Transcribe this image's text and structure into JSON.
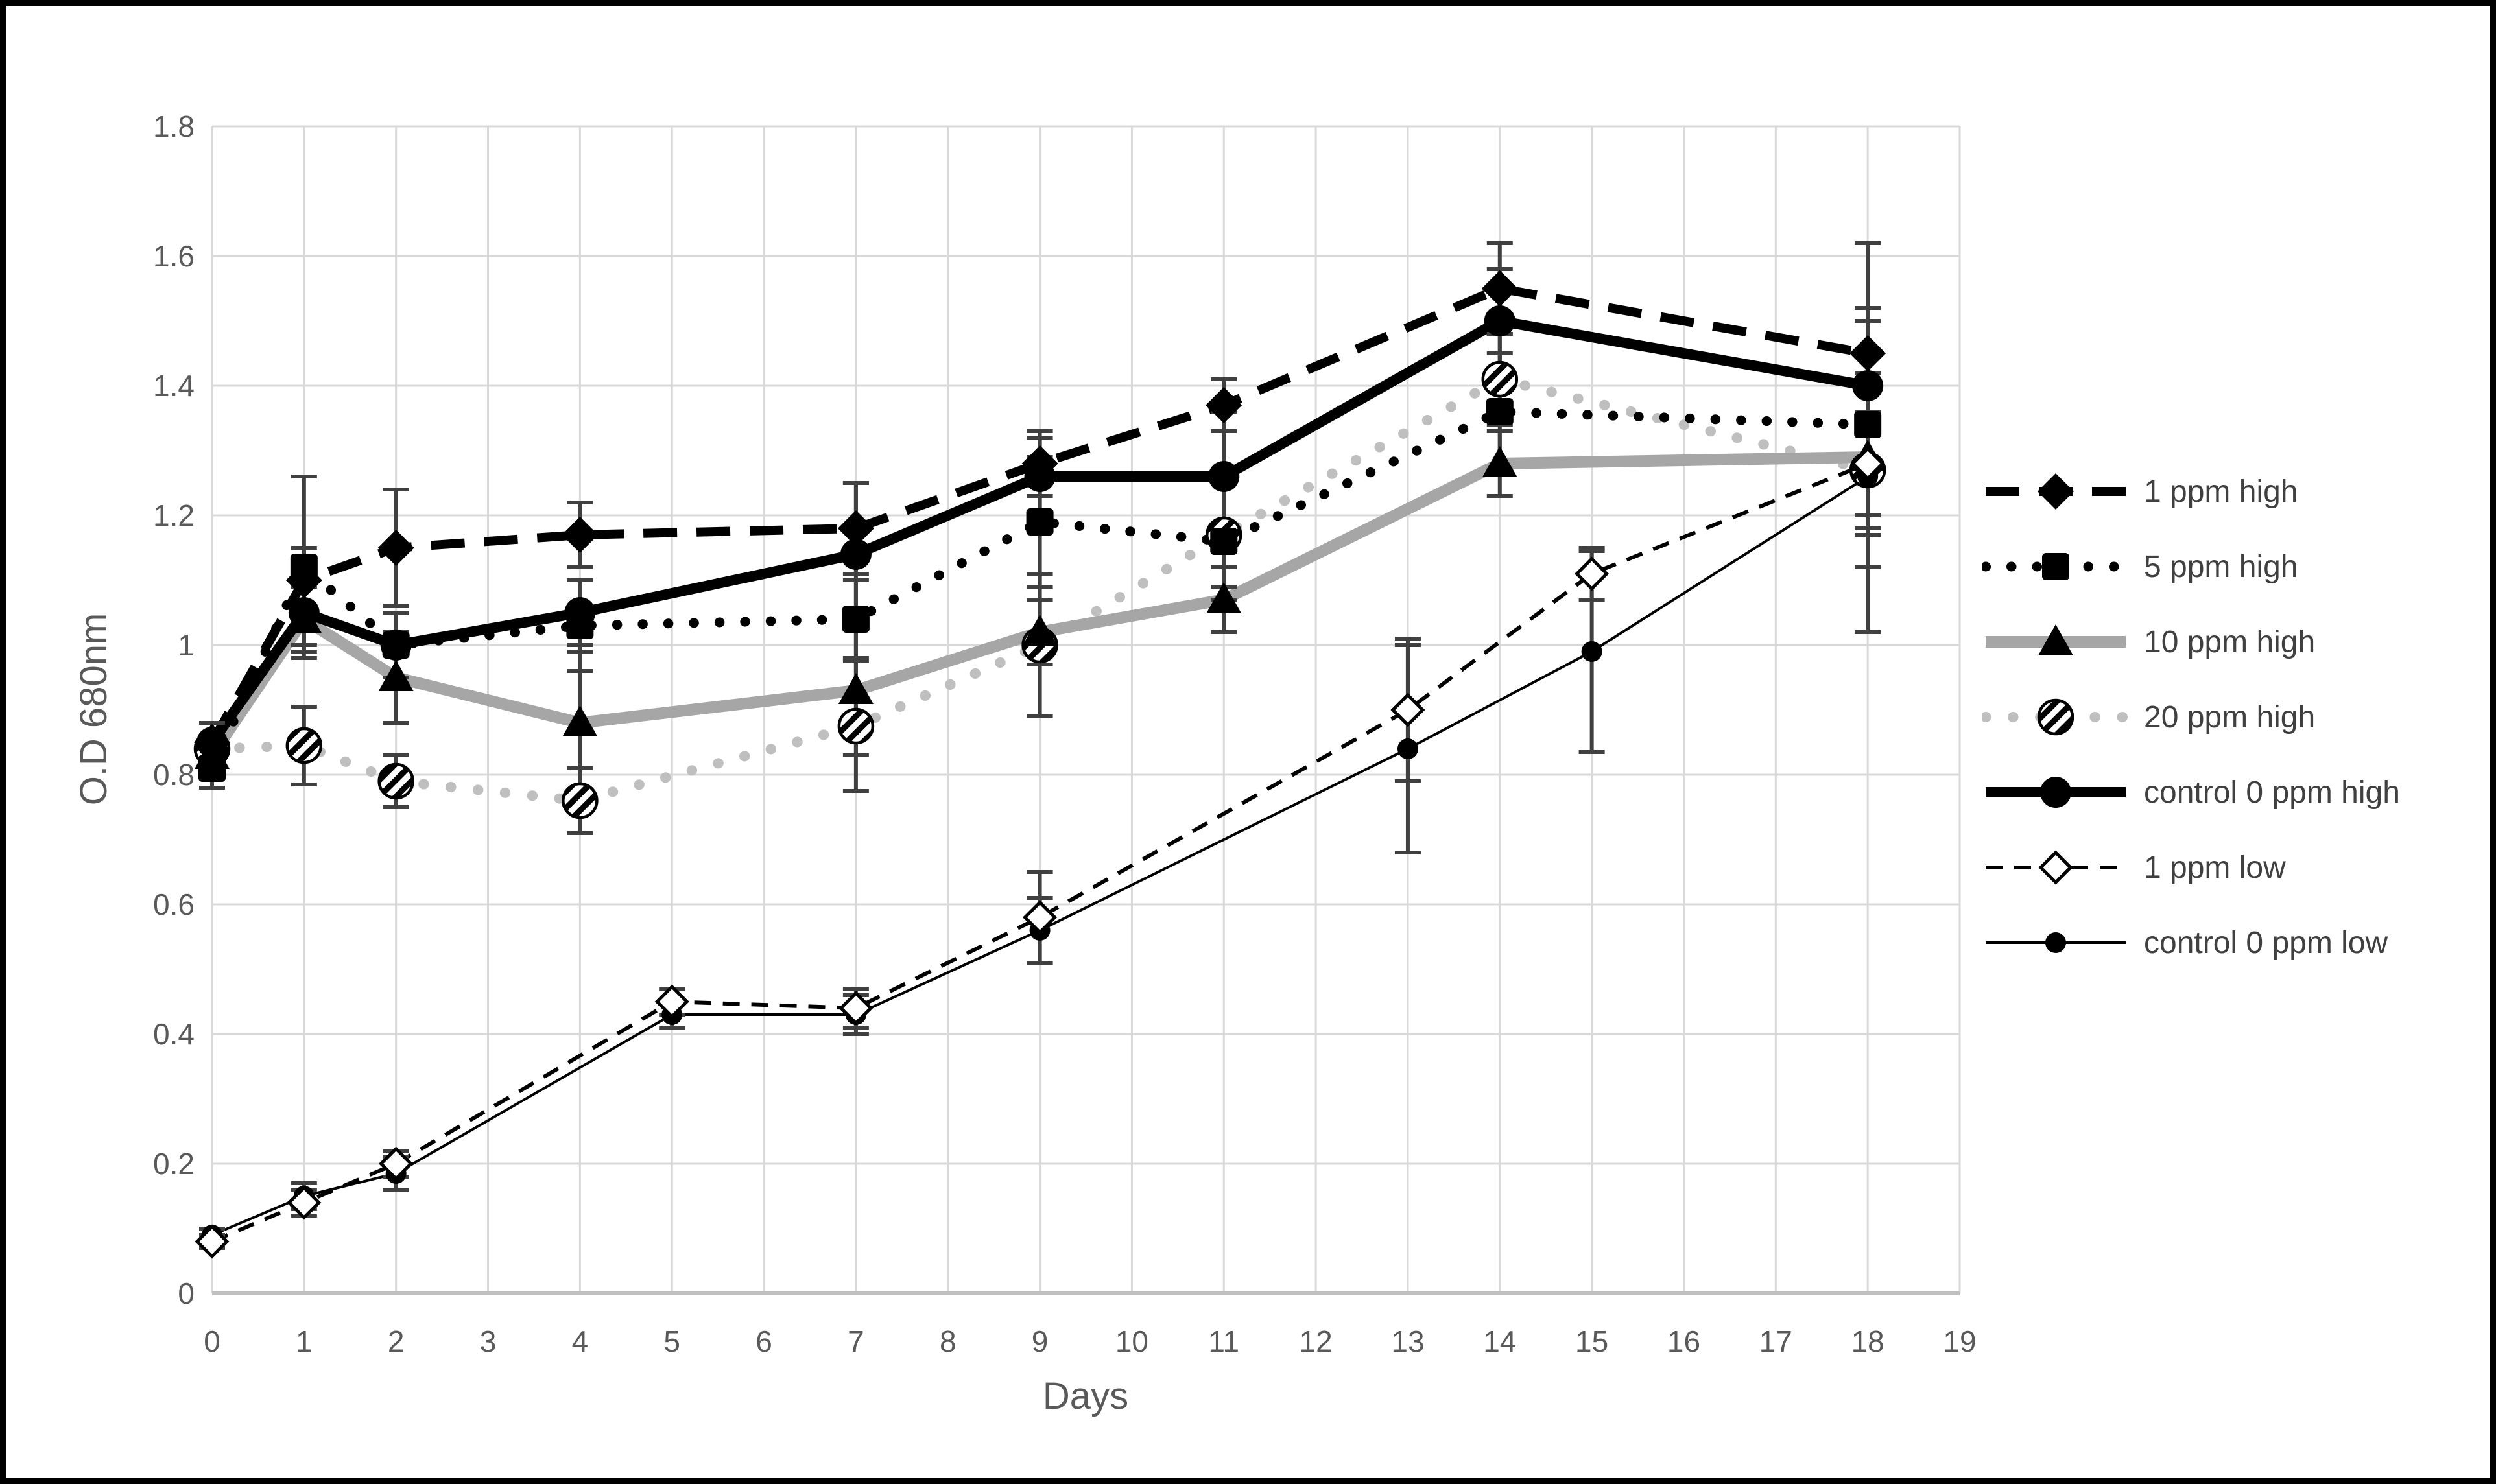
{
  "chart_data": {
    "type": "line",
    "title": "",
    "xlabel": "Days",
    "ylabel": "O.D 680nm",
    "xlim": [
      0,
      19
    ],
    "ylim": [
      0,
      1.8
    ],
    "grid": true,
    "legend_position": "right",
    "xticks": [
      0,
      1,
      2,
      3,
      4,
      5,
      6,
      7,
      8,
      9,
      10,
      11,
      12,
      13,
      14,
      15,
      16,
      17,
      18,
      19
    ],
    "yticks": [
      {
        "v": 0,
        "label": "0"
      },
      {
        "v": 0.2,
        "label": "0.2"
      },
      {
        "v": 0.4,
        "label": "0.4"
      },
      {
        "v": 0.6,
        "label": "0.6"
      },
      {
        "v": 0.8,
        "label": "0.8"
      },
      {
        "v": 1.0,
        "label": "1"
      },
      {
        "v": 1.2,
        "label": "1.2"
      },
      {
        "v": 1.4,
        "label": "1.4"
      },
      {
        "v": 1.6,
        "label": "1.6"
      },
      {
        "v": 1.8,
        "label": "1.8"
      }
    ],
    "colors": {
      "black": "#000000",
      "gray_line": "#a6a6a6",
      "light_gray_line": "#bfbfbf",
      "grid": "#d9d9d9",
      "axis": "#bfbfbf",
      "error_bar": "#404040",
      "text": "#595959"
    },
    "series": [
      {
        "label": "1 ppm high",
        "color": "#000000",
        "line_style": "dashed",
        "line_width": 14,
        "marker": {
          "shape": "diamond",
          "size": 28,
          "fill": "#000000"
        },
        "points": [
          {
            "x": 0,
            "y": 0.85,
            "err": 0.03
          },
          {
            "x": 1,
            "y": 1.1,
            "err": 0.05
          },
          {
            "x": 2,
            "y": 1.15,
            "err": 0.09
          },
          {
            "x": 4,
            "y": 1.17,
            "err": 0.05
          },
          {
            "x": 7,
            "y": 1.18,
            "err": 0.07
          },
          {
            "x": 9,
            "y": 1.28,
            "err": 0.05
          },
          {
            "x": 11,
            "y": 1.37,
            "err": 0.04
          },
          {
            "x": 14,
            "y": 1.55,
            "err": 0.07
          },
          {
            "x": 18,
            "y": 1.45,
            "err": 0.17
          }
        ]
      },
      {
        "label": "5 ppm high",
        "color": "#000000",
        "line_style": "dotted",
        "line_width": 15,
        "marker": {
          "shape": "square",
          "size": 21,
          "fill": "#000000"
        },
        "points": [
          {
            "x": 0,
            "y": 0.81,
            "err": 0.03
          },
          {
            "x": 1,
            "y": 1.12,
            "err": 0.14
          },
          {
            "x": 2,
            "y": 1.0,
            "err": 0.05
          },
          {
            "x": 4,
            "y": 1.03,
            "err": 0.07
          },
          {
            "x": 7,
            "y": 1.04,
            "err": 0.06
          },
          {
            "x": 9,
            "y": 1.19,
            "err": 0.1
          },
          {
            "x": 11,
            "y": 1.16,
            "err": 0.09
          },
          {
            "x": 14,
            "y": 1.36,
            "err": 0.09
          },
          {
            "x": 18,
            "y": 1.34,
            "err": 0.16
          }
        ]
      },
      {
        "label": "10 ppm high",
        "color": "#a6a6a6",
        "line_style": "solid",
        "line_width": 18,
        "marker": {
          "shape": "triangle",
          "size": 27,
          "fill": "#000000"
        },
        "points": [
          {
            "x": 0,
            "y": 0.83,
            "err": 0.03
          },
          {
            "x": 1,
            "y": 1.04,
            "err": 0.05
          },
          {
            "x": 2,
            "y": 0.95,
            "err": 0.07
          },
          {
            "x": 4,
            "y": 0.88,
            "err": 0.11
          },
          {
            "x": 7,
            "y": 0.93,
            "err": 0.1
          },
          {
            "x": 9,
            "y": 1.02,
            "err": 0.05
          },
          {
            "x": 11,
            "y": 1.07,
            "err": 0.05
          },
          {
            "x": 14,
            "y": 1.28,
            "err": 0.05
          },
          {
            "x": 18,
            "y": 1.29,
            "err": 0.12
          }
        ]
      },
      {
        "label": "20 ppm high",
        "color": "#bfbfbf",
        "line_style": "dotted",
        "line_width": 16,
        "marker": {
          "shape": "circle-hatched",
          "size": 26,
          "fill": "hatch"
        },
        "points": [
          {
            "x": 0,
            "y": 0.84,
            "err": 0.02
          },
          {
            "x": 1,
            "y": 0.845,
            "err": 0.06
          },
          {
            "x": 2,
            "y": 0.79,
            "err": 0.04
          },
          {
            "x": 4,
            "y": 0.76,
            "err": 0.05
          },
          {
            "x": 7,
            "y": 0.875,
            "err": 0.1
          },
          {
            "x": 9,
            "y": 1.0,
            "err": 0.11
          },
          {
            "x": 11,
            "y": 1.17,
            "err": 0.08
          },
          {
            "x": 14,
            "y": 1.41,
            "err": 0.07
          },
          {
            "x": 18,
            "y": 1.27,
            "err": 0.15
          }
        ]
      },
      {
        "label": "control 0 ppm high",
        "color": "#000000",
        "line_style": "solid",
        "line_width": 16,
        "marker": {
          "shape": "circle",
          "size": 24,
          "fill": "#000000"
        },
        "points": [
          {
            "x": 0,
            "y": 0.85,
            "err": 0.03
          },
          {
            "x": 1,
            "y": 1.05,
            "err": 0.05
          },
          {
            "x": 2,
            "y": 1.0,
            "err": 0.05
          },
          {
            "x": 4,
            "y": 1.05,
            "err": 0.05
          },
          {
            "x": 7,
            "y": 1.14,
            "err": 0.11
          },
          {
            "x": 9,
            "y": 1.26,
            "err": 0.06
          },
          {
            "x": 11,
            "y": 1.26,
            "err": 0.1
          },
          {
            "x": 14,
            "y": 1.5,
            "err": 0.08
          },
          {
            "x": 18,
            "y": 1.4,
            "err": 0.12
          }
        ]
      },
      {
        "label": "1 ppm low",
        "color": "#000000",
        "line_style": "dashed-thin",
        "line_width": 6,
        "marker": {
          "shape": "diamond-open",
          "size": 23,
          "fill": "#ffffff"
        },
        "points": [
          {
            "x": 0,
            "y": 0.08,
            "err": 0.01
          },
          {
            "x": 1,
            "y": 0.14,
            "err": 0.02
          },
          {
            "x": 2,
            "y": 0.2,
            "err": 0.02
          },
          {
            "x": 5,
            "y": 0.45,
            "err": 0.02
          },
          {
            "x": 7,
            "y": 0.44,
            "err": 0.03
          },
          {
            "x": 9,
            "y": 0.58,
            "err": 0.07
          },
          {
            "x": 13,
            "y": 0.9,
            "err": 0.11
          },
          {
            "x": 15,
            "y": 1.11,
            "err": 0.04
          },
          {
            "x": 18,
            "y": 1.28,
            "err": 0.08
          }
        ]
      },
      {
        "label": "control 0 ppm low",
        "color": "#000000",
        "line_style": "solid",
        "line_width": 4,
        "marker": {
          "shape": "circle",
          "size": 16,
          "fill": "#000000"
        },
        "points": [
          {
            "x": 0,
            "y": 0.09,
            "err": 0.01
          },
          {
            "x": 1,
            "y": 0.15,
            "err": 0.02
          },
          {
            "x": 2,
            "y": 0.185,
            "err": 0.025
          },
          {
            "x": 5,
            "y": 0.43,
            "err": 0.02
          },
          {
            "x": 7,
            "y": 0.43,
            "err": 0.03
          },
          {
            "x": 9,
            "y": 0.56,
            "err": 0.05
          },
          {
            "x": 13,
            "y": 0.84,
            "err": 0.16
          },
          {
            "x": 15,
            "y": 0.99,
            "err": 0.155
          },
          {
            "x": 18,
            "y": 1.26,
            "err": 0.24
          }
        ]
      }
    ]
  }
}
